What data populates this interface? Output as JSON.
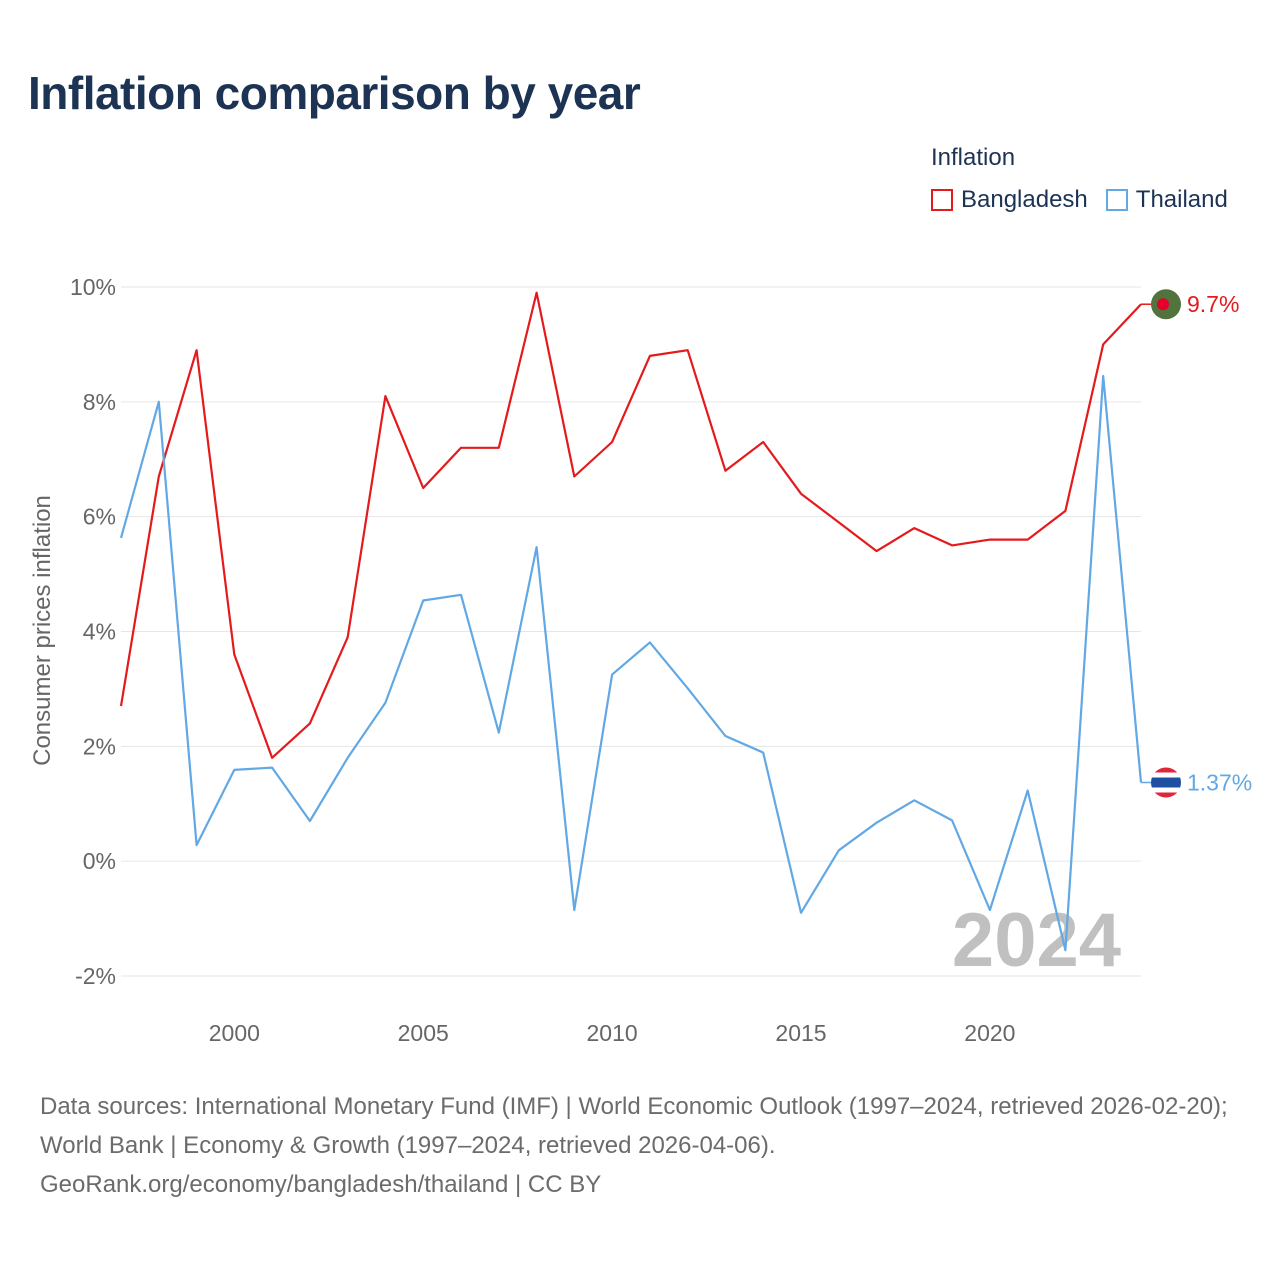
{
  "title": "Inflation comparison by year",
  "legend_title": "Inflation",
  "footer": {
    "sources": "Data sources: International Monetary Fund (IMF) | World Economic Outlook (1997–2024, retrieved 2026-02-20); World Bank | Economy & Growth (1997–2024, retrieved 2026-04-06).",
    "site": "GeoRank.org/economy/bangladesh/thailand | CC BY"
  },
  "chart_data": {
    "type": "line",
    "title": "Inflation comparison by year",
    "xlabel": "",
    "ylabel": "Consumer prices inflation",
    "xlim": [
      1997,
      2024
    ],
    "ylim": [
      -2,
      10
    ],
    "yticks": [
      -2,
      0,
      2,
      4,
      6,
      8,
      10
    ],
    "ytick_labels": [
      "-2%",
      "0%",
      "2%",
      "4%",
      "6%",
      "8%",
      "10%"
    ],
    "xticks": [
      2000,
      2005,
      2010,
      2015,
      2020
    ],
    "xtick_labels": [
      "2000",
      "2005",
      "2010",
      "2015",
      "2020"
    ],
    "grid": true,
    "current_year_label": "2024",
    "legend_position": "top-right",
    "x": [
      1997,
      1998,
      1999,
      2000,
      2001,
      2002,
      2003,
      2004,
      2005,
      2006,
      2007,
      2008,
      2009,
      2010,
      2011,
      2012,
      2013,
      2014,
      2015,
      2016,
      2017,
      2018,
      2019,
      2020,
      2021,
      2022,
      2023,
      2024
    ],
    "series": [
      {
        "name": "Bangladesh",
        "color": "#e41a1c",
        "end_label": "9.7%",
        "flag_icon": "bangladesh-flag-icon",
        "values": [
          2.7,
          6.7,
          8.9,
          3.6,
          1.8,
          2.4,
          3.9,
          8.1,
          6.5,
          7.2,
          7.2,
          9.9,
          6.7,
          7.3,
          8.8,
          8.9,
          6.8,
          7.3,
          6.4,
          5.9,
          5.4,
          5.8,
          5.5,
          5.6,
          5.6,
          6.1,
          9.0,
          9.7
        ]
      },
      {
        "name": "Thailand",
        "color": "#62a8e5",
        "end_label": "1.37%",
        "flag_icon": "thailand-flag-icon",
        "values": [
          5.63,
          8.0,
          0.28,
          1.59,
          1.63,
          0.7,
          1.8,
          2.76,
          4.54,
          4.64,
          2.24,
          5.47,
          -0.85,
          3.25,
          3.81,
          3.01,
          2.18,
          1.89,
          -0.9,
          0.19,
          0.67,
          1.06,
          0.71,
          -0.85,
          1.23,
          -1.55,
          8.45,
          1.37
        ]
      }
    ]
  },
  "colors": {
    "title": "#1c3354",
    "axis_text": "#666666",
    "grid": "#e6e6e6",
    "watermark": "#c0c0c0",
    "bangladesh_flag_green": "#52733d",
    "bangladesh_flag_red": "#e4002b",
    "thailand_flag_red": "#e0263b",
    "thailand_flag_blue": "#1f4fa0"
  }
}
